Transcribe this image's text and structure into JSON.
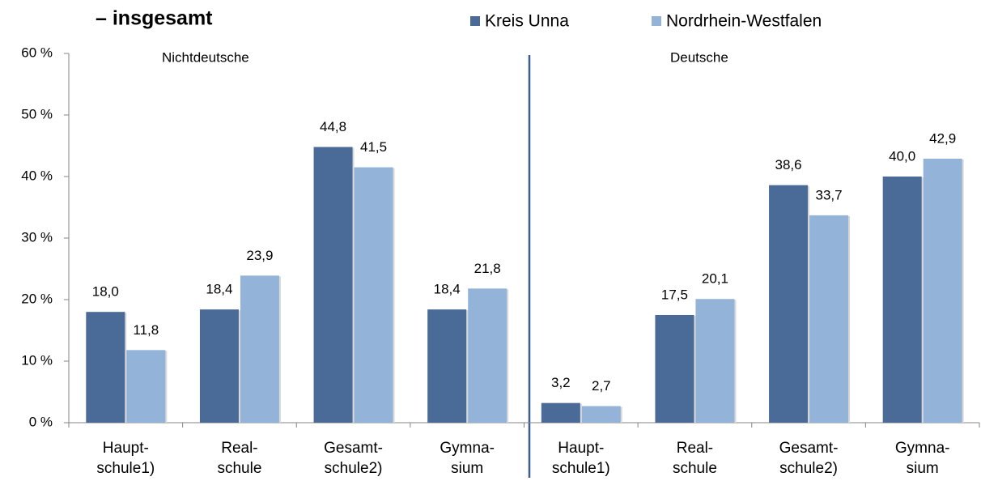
{
  "chart_data": {
    "type": "bar",
    "title": "– insgesamt",
    "annotations": [
      "Nichtdeutsche",
      "Deutsche"
    ],
    "categories": [
      [
        "Haupt-",
        "schule1)"
      ],
      [
        "Real-",
        "schule"
      ],
      [
        "Gesamt-",
        "schule2)"
      ],
      [
        "Gymna-",
        "sium"
      ],
      [
        "Haupt-",
        "schule1)"
      ],
      [
        "Real-",
        "schule"
      ],
      [
        "Gesamt-",
        "schule2)"
      ],
      [
        "Gymna-",
        "sium"
      ]
    ],
    "series": [
      {
        "name": "Kreis Unna",
        "color": "#4a6a98",
        "values": [
          18.0,
          18.4,
          44.8,
          18.4,
          3.2,
          17.5,
          38.6,
          40.0
        ],
        "value_labels": [
          "18,0",
          "18,4",
          "44,8",
          "18,4",
          "3,2",
          "17,5",
          "38,6",
          "40,0"
        ]
      },
      {
        "name": "Nordrhein-Westfalen",
        "color": "#94b3d9",
        "values": [
          11.8,
          23.9,
          41.5,
          21.8,
          2.7,
          20.1,
          33.7,
          42.9
        ],
        "value_labels": [
          "11,8",
          "23,9",
          "41,5",
          "21,8",
          "2,7",
          "20,1",
          "33,7",
          "42,9"
        ]
      }
    ],
    "ylim": [
      0,
      60
    ],
    "yticks": [
      {
        "value": 0,
        "label": "0 %"
      },
      {
        "value": 10,
        "label": "10 %"
      },
      {
        "value": 20,
        "label": "20 %"
      },
      {
        "value": 30,
        "label": "30 %"
      },
      {
        "value": 40,
        "label": "40 %"
      },
      {
        "value": 50,
        "label": "50 %"
      },
      {
        "value": 60,
        "label": "60 %"
      }
    ],
    "legend": "top-right"
  }
}
